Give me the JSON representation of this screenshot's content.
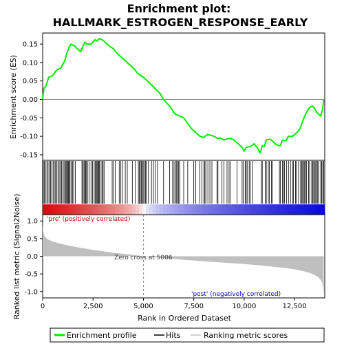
{
  "chart_data": {
    "type": "line",
    "title_line1": "Enrichment plot:",
    "title_line2": "HALLMARK_ESTROGEN_RESPONSE_EARLY",
    "top_panel": {
      "ylabel": "Enrichment score (ES)",
      "ylim": [
        -0.165,
        0.18
      ],
      "yticks": [
        0.15,
        0.1,
        0.05,
        0.0,
        -0.05,
        -0.1,
        -0.15
      ],
      "ytick_labels": [
        "0.15",
        "0.10",
        "0.05",
        "0.00",
        "-0.05",
        "-0.10",
        "-0.15"
      ],
      "series": [
        {
          "name": "Enrichment profile",
          "color": "#00ee00",
          "x": [
            0,
            60,
            150,
            300,
            500,
            700,
            900,
            1000,
            1100,
            1200,
            1300,
            1400,
            1600,
            1750,
            1900,
            2000,
            2100,
            2200,
            2400,
            2600,
            2700,
            2800,
            3000,
            3100,
            3300,
            3500,
            3700,
            3900,
            4100,
            4300,
            4500,
            4700,
            4900,
            5006,
            5200,
            5400,
            5600,
            5800,
            6000,
            6200,
            6400,
            6500,
            6600,
            6800,
            7000,
            7200,
            7400,
            7600,
            7800,
            8000,
            8100,
            8200,
            8400,
            8500,
            8700,
            8800,
            9000,
            9100,
            9300,
            9500,
            9700,
            9900,
            10000,
            10100,
            10300,
            10500,
            10700,
            10800,
            10900,
            11000,
            11100,
            11300,
            11500,
            11700,
            11800,
            11900,
            12000,
            12100,
            12200,
            12300,
            12400,
            12500,
            12600,
            12700,
            12800,
            12900,
            13000,
            13100,
            13200,
            13300,
            13400,
            13500,
            13600,
            13700,
            13800,
            13850,
            13900,
            13950
          ],
          "y": [
            0.0,
            0.03,
            0.035,
            0.06,
            0.065,
            0.08,
            0.085,
            0.095,
            0.105,
            0.125,
            0.14,
            0.15,
            0.145,
            0.135,
            0.13,
            0.145,
            0.155,
            0.15,
            0.15,
            0.162,
            0.158,
            0.165,
            0.16,
            0.155,
            0.145,
            0.138,
            0.125,
            0.115,
            0.105,
            0.095,
            0.085,
            0.072,
            0.063,
            0.06,
            0.05,
            0.04,
            0.028,
            0.018,
            0.0,
            -0.012,
            -0.025,
            -0.035,
            -0.04,
            -0.045,
            -0.05,
            -0.065,
            -0.08,
            -0.09,
            -0.1,
            -0.103,
            -0.098,
            -0.095,
            -0.098,
            -0.1,
            -0.106,
            -0.104,
            -0.11,
            -0.108,
            -0.105,
            -0.11,
            -0.12,
            -0.13,
            -0.14,
            -0.13,
            -0.128,
            -0.12,
            -0.135,
            -0.145,
            -0.125,
            -0.128,
            -0.11,
            -0.108,
            -0.118,
            -0.125,
            -0.125,
            -0.11,
            -0.112,
            -0.11,
            -0.1,
            -0.1,
            -0.1,
            -0.095,
            -0.09,
            -0.085,
            -0.075,
            -0.06,
            -0.045,
            -0.035,
            -0.025,
            -0.02,
            -0.018,
            -0.025,
            -0.035,
            -0.04,
            -0.045,
            -0.035,
            -0.025,
            0.0
          ]
        }
      ]
    },
    "hit_positions": [
      30,
      80,
      140,
      210,
      270,
      330,
      390,
      450,
      520,
      580,
      640,
      700,
      760,
      820,
      880,
      940,
      1000,
      1060,
      1120,
      1160,
      1200,
      1240,
      1280,
      1320,
      1360,
      1420,
      1480,
      1540,
      1620,
      1950,
      2000,
      2050,
      2090,
      2130,
      2180,
      2220,
      2300,
      2400,
      2480,
      2560,
      2620,
      2660,
      2700,
      2740,
      2780,
      2820,
      2900,
      2960,
      3000,
      3050,
      3450,
      3520,
      3600,
      3800,
      3880,
      3960,
      4100,
      4200,
      4450,
      4600,
      4750,
      4800,
      4850,
      4900,
      4950,
      4990,
      5050,
      5100,
      5150,
      5250,
      5400,
      5500,
      5600,
      5700,
      6000,
      6300,
      6450,
      6520,
      6600,
      6650,
      6700,
      6750,
      6800,
      7000,
      7200,
      7500,
      7600,
      7800,
      7900,
      8000,
      8050,
      8100,
      8200,
      8300,
      8400,
      8650,
      8700,
      8900,
      9000,
      9150,
      9250,
      9300,
      9650,
      9900,
      9950,
      10050,
      10100,
      10150,
      10250,
      10300,
      10400,
      10850,
      10900,
      11050,
      11100,
      11200,
      11250,
      11350,
      11400,
      11750,
      11800,
      11900,
      11950,
      12000,
      12100,
      12200,
      12300,
      12400,
      12450,
      12550,
      12600,
      12700,
      12800,
      12850,
      12900,
      12950,
      13000,
      13050,
      13100,
      13200,
      13250,
      13350,
      13400,
      13450,
      13500,
      13550,
      13600,
      13650,
      13700,
      13800,
      13850,
      13900,
      13950
    ],
    "ranked_metric": {
      "ylabel": "Ranked list metric (Signal2Noise)",
      "xlabel": "Rank in Ordered Dataset",
      "ylim": [
        -1.18,
        1.18
      ],
      "yticks": [
        1.0,
        0.5,
        0.0,
        -0.5,
        -1.0
      ],
      "ytick_labels": [
        "1.0",
        "0.5",
        "0.0",
        "-0.5",
        "-1.0"
      ],
      "fill_color": "#bfbfbf",
      "x": [
        0,
        20,
        60,
        120,
        250,
        500,
        1000,
        1500,
        2000,
        2500,
        3000,
        3500,
        4000,
        4500,
        5006,
        5500,
        6000,
        7000,
        8000,
        9000,
        10000,
        11000,
        12000,
        12500,
        13000,
        13300,
        13500,
        13700,
        13800,
        13870,
        13920,
        13950
      ],
      "values": [
        0.98,
        0.75,
        0.62,
        0.55,
        0.48,
        0.42,
        0.34,
        0.28,
        0.23,
        0.18,
        0.14,
        0.1,
        0.07,
        0.04,
        0.0,
        -0.03,
        -0.05,
        -0.1,
        -0.14,
        -0.18,
        -0.22,
        -0.27,
        -0.33,
        -0.37,
        -0.43,
        -0.48,
        -0.53,
        -0.6,
        -0.67,
        -0.75,
        -0.9,
        -1.12
      ]
    },
    "zero_cross_label": "Zero cross at 5006",
    "zero_cross_x": 5006,
    "pos_label": "'pre' (positively correlated)",
    "neg_label": "'post' (negatively correlated)",
    "pos_color": "#cc0000",
    "neg_color": "#0000cc",
    "xlim": [
      0,
      14000
    ],
    "xticks": [
      0,
      2500,
      5000,
      7500,
      10000,
      12500
    ],
    "xtick_labels": [
      "0",
      "2,500",
      "5,000",
      "7,500",
      "10,000",
      "12,500"
    ],
    "legend": {
      "entries": [
        {
          "label": "Enrichment profile",
          "color": "#00ee00"
        },
        {
          "label": "Hits",
          "color": "#000000"
        },
        {
          "label": "Ranking metric scores",
          "color": "#bfbfbf"
        }
      ]
    }
  }
}
